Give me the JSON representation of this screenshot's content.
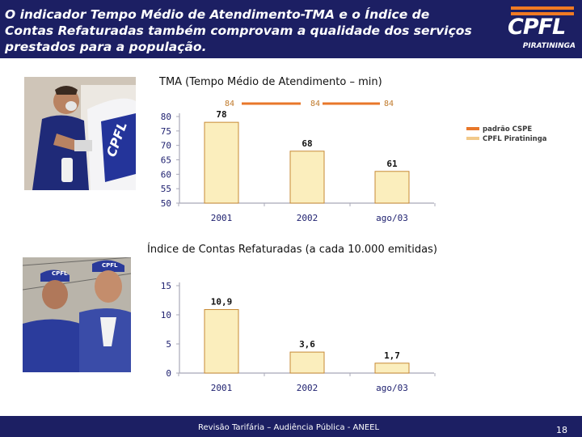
{
  "header": {
    "title": "O indicador Tempo Médio de Atendimento-TMA e o Índice de Contas Refaturadas também comprovam a qualidade dos serviços prestados para a população."
  },
  "logo": {
    "name": "CPFL",
    "sub": "PIRATININGA"
  },
  "colors": {
    "header_bg": "#1c1f63",
    "bar_fill": "#fbeebd",
    "bar_stroke": "#c78a35",
    "axis": "#a8a8b8",
    "standard_line": "#e8772a",
    "tick_text": "#1f2170",
    "standard_label_text": "#c07a2b"
  },
  "chart_data": [
    {
      "type": "bar",
      "title": "TMA (Tempo Médio de Atendimento – min)",
      "categories": [
        "2001",
        "2002",
        "ago/03"
      ],
      "series": [
        {
          "name": "CPFL Piratininga",
          "values": [
            78,
            68,
            61
          ]
        },
        {
          "name": "padrão CSPE",
          "values": [
            84,
            84,
            84
          ]
        }
      ],
      "value_labels": [
        "78",
        "68",
        "61"
      ],
      "standard_labels": [
        "84",
        "84",
        "84"
      ],
      "yticks": [
        "80",
        "75",
        "70",
        "65",
        "60",
        "55",
        "50"
      ],
      "ylim": [
        50,
        80
      ],
      "legend": [
        "padrão CSPE",
        "CPFL Piratininga"
      ],
      "legend_position": "right",
      "grid": false
    },
    {
      "type": "bar",
      "title": "Índice de Contas Refaturadas (a cada 10.000 emitidas)",
      "categories": [
        "2001",
        "2002",
        "ago/03"
      ],
      "series": [
        {
          "values": [
            10.9,
            3.6,
            1.7
          ]
        }
      ],
      "value_labels": [
        "10,9",
        "3,6",
        "1,7"
      ],
      "yticks": [
        "15",
        "10",
        "5",
        "0"
      ],
      "ylim": [
        0,
        15
      ],
      "grid": false
    }
  ],
  "footer": {
    "text": "Revisão Tarifária – Audiência Pública - ANEEL",
    "page": "18"
  }
}
